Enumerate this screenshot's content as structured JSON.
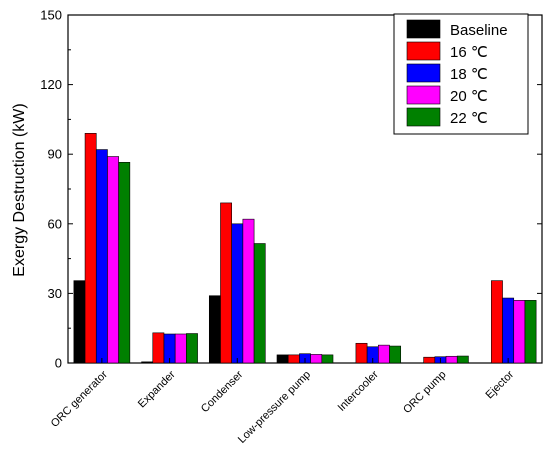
{
  "chart_data": {
    "type": "bar",
    "title": "",
    "xlabel": "",
    "ylabel": "Exergy Destruction (kW)",
    "ylim": [
      0,
      150
    ],
    "yticks": [
      0,
      30,
      60,
      90,
      120,
      150
    ],
    "categories": [
      "ORC generator",
      "Expander",
      "Condenser",
      "Low-pressure pump",
      "Intercooler",
      "ORC pump",
      "Ejector"
    ],
    "series": [
      {
        "name": "Baseline",
        "color": "#000000",
        "values": [
          35.5,
          0.5,
          29.0,
          3.5,
          0,
          0,
          0
        ]
      },
      {
        "name": "16 ℃",
        "color": "#ff0000",
        "values": [
          99.0,
          13.0,
          69.0,
          3.5,
          8.5,
          2.5,
          35.5
        ]
      },
      {
        "name": "18 ℃",
        "color": "#0000ff",
        "values": [
          92.0,
          12.5,
          60.0,
          4.0,
          7.0,
          2.7,
          28.0
        ]
      },
      {
        "name": "20 ℃",
        "color": "#ff00ff",
        "values": [
          89.0,
          12.5,
          62.0,
          3.7,
          7.7,
          2.9,
          27.0
        ]
      },
      {
        "name": "22 ℃",
        "color": "#008000",
        "values": [
          86.5,
          12.7,
          51.5,
          3.5,
          7.3,
          3.0,
          27.0
        ]
      }
    ],
    "legend_position": "top-right"
  }
}
